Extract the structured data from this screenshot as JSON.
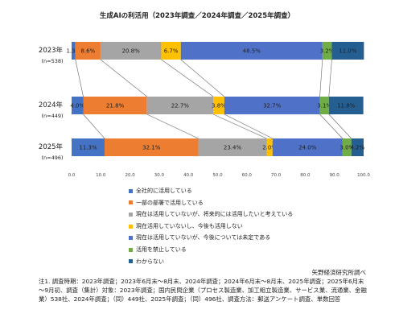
{
  "chart_data": {
    "type": "bar",
    "orientation": "horizontal",
    "stacked": true,
    "title": "生成AIの利活用（2023年調査／2024年調査／2025年調査）",
    "categories": [
      {
        "year": "2023年",
        "n": "(n=538)"
      },
      {
        "year": "2024年",
        "n": "(n=449)"
      },
      {
        "year": "2025年",
        "n": "(n=496)"
      }
    ],
    "series": [
      {
        "name": "全社的に活用している",
        "color": "#4472C4",
        "values": [
          1.3,
          4.0,
          11.3
        ],
        "labels": [
          "1.3%",
          "4.0%",
          "11.3%"
        ]
      },
      {
        "name": "一部の部署で活用している",
        "color": "#ED7D31",
        "values": [
          8.6,
          21.8,
          32.1
        ],
        "labels": [
          "8.6%",
          "21.8%",
          "32.1%"
        ]
      },
      {
        "name": "現在は活用していないが、将来的には活用したいと考えている",
        "color": "#A5A5A5",
        "values": [
          20.8,
          22.7,
          23.4
        ],
        "labels": [
          "20.8%",
          "22.7%",
          "23.4%"
        ]
      },
      {
        "name": "現在活用していないし、今後も活用しない",
        "color": "#FFC000",
        "values": [
          6.7,
          3.8,
          2.0
        ],
        "labels": [
          "6.7%",
          "3.8%",
          "2.0%"
        ]
      },
      {
        "name": "現在は活用していないが、今後については未定である",
        "color": "#4F72C8",
        "values": [
          48.5,
          32.7,
          24.0
        ],
        "labels": [
          "48.5%",
          "32.7%",
          "24.0%"
        ]
      },
      {
        "name": "活用を禁止している",
        "color": "#70AD47",
        "values": [
          3.2,
          3.1,
          3.0
        ],
        "labels": [
          "3.2%",
          "3.1%",
          "3.0%"
        ]
      },
      {
        "name": "わからない",
        "color": "#255E91",
        "values": [
          11.0,
          11.8,
          4.2
        ],
        "labels": [
          "11.0%",
          "11.8%",
          "4.2%"
        ]
      }
    ],
    "xlim": [
      0,
      100
    ],
    "xticks": [
      "0.0",
      "10.0",
      "20.0",
      "30.0",
      "40.0",
      "50.0",
      "60.0",
      "70.0",
      "80.0",
      "90.0",
      "100.0"
    ]
  },
  "source": "矢野経済研究所調べ",
  "notes": "注1. 調査時期：2023年調査；2023年6月末～8月末、2024年調査；2024年6月末～8月末、2025年調査；2025年6月末～9月初、調査（集計）対象：2023年調査；国内民間企業（プロセス製造業、加工組立製造業、サービス業、流通業、金融業）538社、2024年調査；（同）449社、2025年調査；（同）496社、調査方法：郵送アンケート調査、単数回答"
}
